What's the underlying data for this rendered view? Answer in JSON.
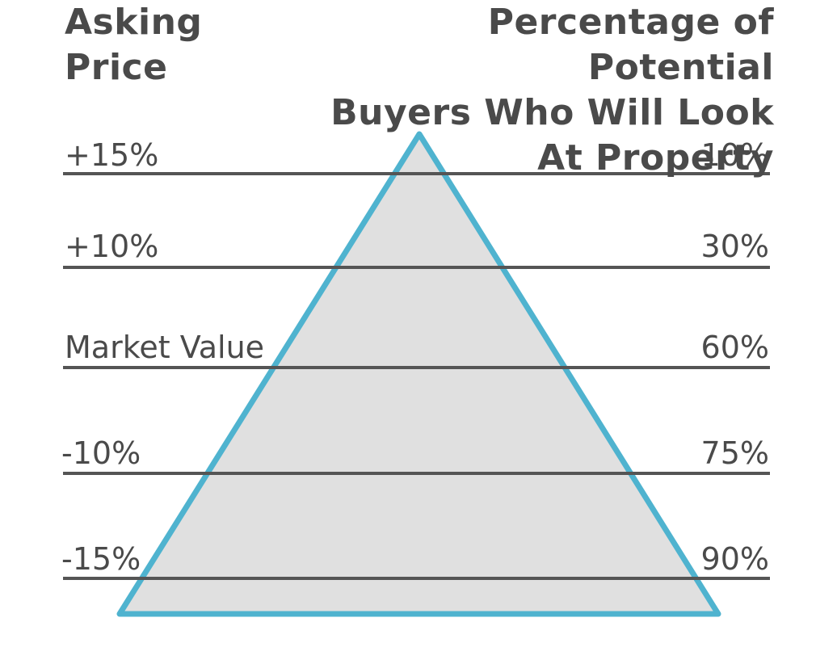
{
  "headers": {
    "left_line1": "Asking",
    "left_line2": "Price",
    "right_line1": "Percentage of Potential",
    "right_line2": "Buyers Who Will Look",
    "right_line3": "At Property"
  },
  "rows": [
    {
      "price": "+15%",
      "percent": "10%"
    },
    {
      "price": "+10%",
      "percent": "30%"
    },
    {
      "price": "Market Value",
      "percent": "60%"
    },
    {
      "price": "-10%",
      "percent": "75%"
    },
    {
      "price": "-15%",
      "percent": "90%"
    }
  ],
  "colors": {
    "triangle_fill": "#e0e0e0",
    "triangle_stroke": "#4fb3cf",
    "line": "#555555",
    "text": "#4a4a4a"
  }
}
